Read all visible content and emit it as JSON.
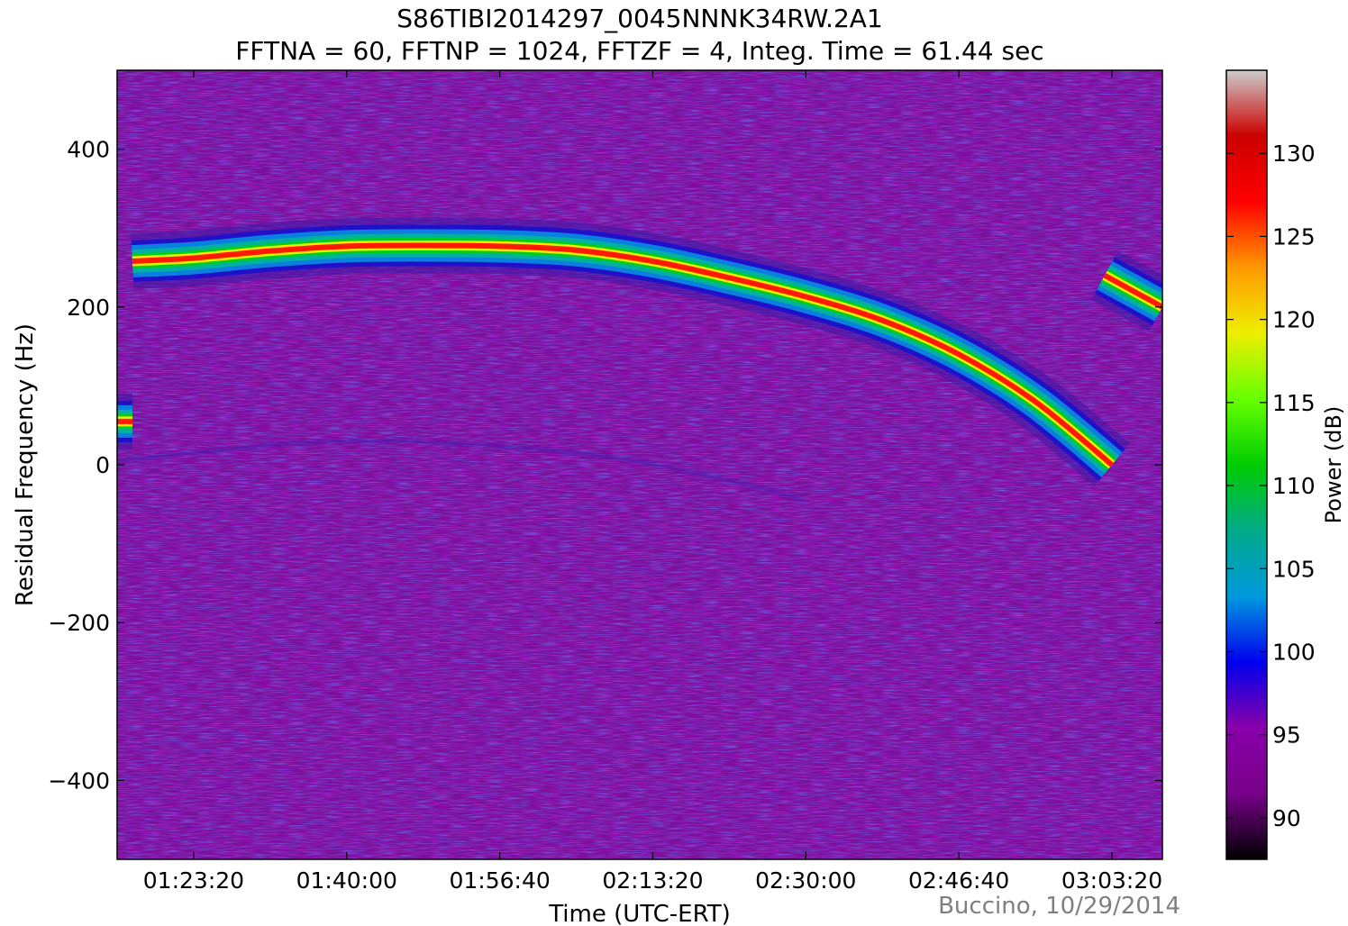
{
  "chart_data": {
    "type": "heatmap",
    "title": "S86TIBI2014297_0045NNNK34RW.2A1",
    "subtitle": "FFTNA = 60, FFTNP = 1024, FFTZF = 4, Integ. Time = 61.44 sec",
    "xlabel": "Time (UTC-ERT)",
    "ylabel": "Residual Frequency (Hz)",
    "colorbar_label": "Power (dB)",
    "x_ticks": [
      "01:23:20",
      "01:40:00",
      "01:56:40",
      "02:13:20",
      "02:30:00",
      "02:46:40",
      "03:03:20"
    ],
    "x_tick_seconds": [
      5000,
      6000,
      7000,
      8000,
      9000,
      10000,
      11000
    ],
    "xlim": [
      "01:15:00",
      "03:03:20"
    ],
    "ylim": [
      -500,
      500
    ],
    "y_ticks": [
      400,
      200,
      0,
      -200,
      -400
    ],
    "y_tick_labels": [
      "400",
      "200",
      "0",
      "−200",
      "−400"
    ],
    "colorbar_ticks": [
      90,
      95,
      100,
      105,
      110,
      115,
      120,
      125,
      130
    ],
    "colorbar_range": [
      87.5,
      135
    ],
    "colormap": [
      "#000000",
      "#770088",
      "#8800aa",
      "#0000ee",
      "#0099dd",
      "#00aa88",
      "#00cc00",
      "#66ff00",
      "#eeee00",
      "#ff9900",
      "#ff0000",
      "#cc0000",
      "#cccccc"
    ],
    "background_power_db": 90,
    "peak_power_db": 132,
    "grid": false,
    "signal_tracks": [
      {
        "segment": "early",
        "time": [
          "01:15:00",
          "01:16:40"
        ],
        "frequency_hz": [
          55,
          55
        ]
      },
      {
        "segment": "main",
        "time": [
          "01:16:40",
          "01:23:20",
          "01:31:40",
          "01:40:00",
          "01:48:20",
          "01:56:40",
          "02:05:00",
          "02:13:20",
          "02:21:40",
          "02:30:00",
          "02:38:20",
          "02:46:40",
          "02:55:00",
          "03:03:20"
        ],
        "frequency_hz": [
          258,
          262,
          271,
          277,
          278,
          277,
          272,
          258,
          237,
          213,
          183,
          140,
          80,
          0
        ]
      },
      {
        "segment": "late",
        "time": [
          "03:03:20",
          "03:08:20"
        ],
        "frequency_hz": [
          240,
          200
        ]
      }
    ],
    "faint_trace": {
      "time": [
        "01:15:00",
        "01:40:00",
        "02:05:00",
        "02:21:40",
        "02:30:00"
      ],
      "frequency_hz": [
        5,
        30,
        15,
        -20,
        -45
      ]
    }
  },
  "credit": "Buccino, 10/29/2014"
}
